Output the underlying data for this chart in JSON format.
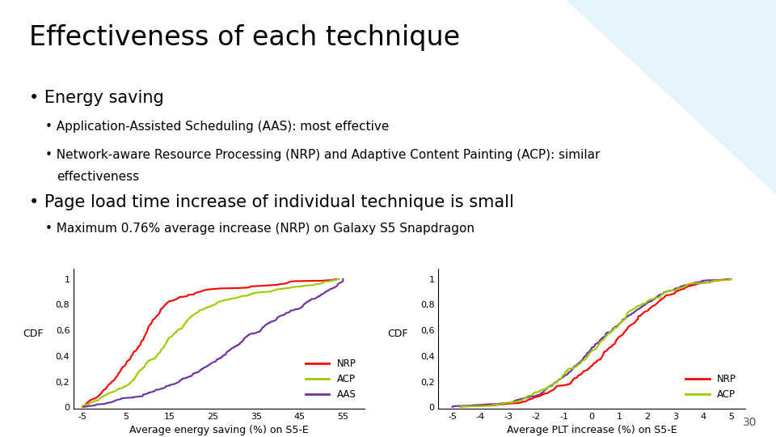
{
  "title": "Effectiveness of each technique",
  "bullet1": "Energy saving",
  "sub_bullet1": "Application-Assisted Scheduling (AAS): most effective",
  "sub_bullet2a": "Network-aware Resource Processing (NRP) and Adaptive Content Painting (ACP): similar",
  "sub_bullet2b": "effectiveness",
  "bullet2": "Page load time increase of individual technique is small",
  "sub_bullet3": "Maximum 0.76% average increase (NRP) on Galaxy S5 Snapdragon",
  "page_num": "30",
  "plot1_xlabel": "Average energy saving (%) on S5-E",
  "plot1_ylabel": "CDF",
  "plot1_xticks": [
    -5,
    5,
    15,
    25,
    35,
    45,
    55
  ],
  "plot1_yticks": [
    0,
    0.2,
    0.4,
    0.6,
    0.8,
    1
  ],
  "plot1_yticklabels": [
    "0",
    "0,2",
    "0,4",
    "0,6",
    "0,8",
    "1"
  ],
  "plot2_xlabel": "Average PLT increase (%) on S5-E",
  "plot2_ylabel": "CDF",
  "plot2_xticks": [
    -5,
    -4,
    -3,
    -2,
    -1,
    0,
    1,
    2,
    3,
    4,
    5
  ],
  "plot2_yticks": [
    0,
    0.2,
    0.4,
    0.6,
    0.8,
    1
  ],
  "plot2_yticklabels": [
    "0",
    "0,2",
    "0,4",
    "0,6",
    "0,8",
    "1"
  ],
  "color_NRP": "#ff0000",
  "color_ACP": "#99cc00",
  "color_AAS": "#7030a0",
  "bg_color": "#ffffff",
  "title_fontsize": 24,
  "bullet_fontsize": 15,
  "sub_bullet_fontsize": 11
}
